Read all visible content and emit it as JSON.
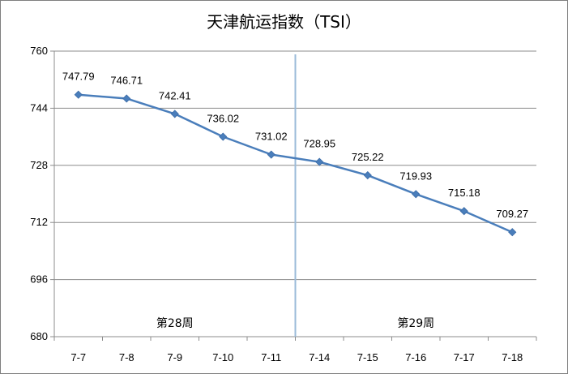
{
  "chart_data": {
    "type": "line",
    "title": "天津航运指数（TSI）",
    "xlabel": "",
    "ylabel": "",
    "categories": [
      "7-7",
      "7-8",
      "7-9",
      "7-10",
      "7-11",
      "7-14",
      "7-15",
      "7-16",
      "7-17",
      "7-18"
    ],
    "values": [
      747.79,
      746.71,
      742.41,
      736.02,
      731.02,
      728.95,
      725.22,
      719.93,
      715.18,
      709.27
    ],
    "data_labels": [
      "747.79",
      "746.71",
      "742.41",
      "736.02",
      "731.02",
      "728.95",
      "725.22",
      "719.93",
      "715.18",
      "709.27"
    ],
    "ylim": [
      680,
      760
    ],
    "yticks": [
      680,
      696,
      712,
      728,
      744,
      760
    ],
    "grid": true,
    "legend": "none",
    "line_color": "#4a7ebb",
    "marker": "diamond",
    "divider_color": "#9bbbd9",
    "annotations": [
      {
        "text": "第28周",
        "category_center": [
          0,
          4
        ]
      },
      {
        "text": "第29周",
        "category_center": [
          5,
          9
        ]
      }
    ]
  }
}
